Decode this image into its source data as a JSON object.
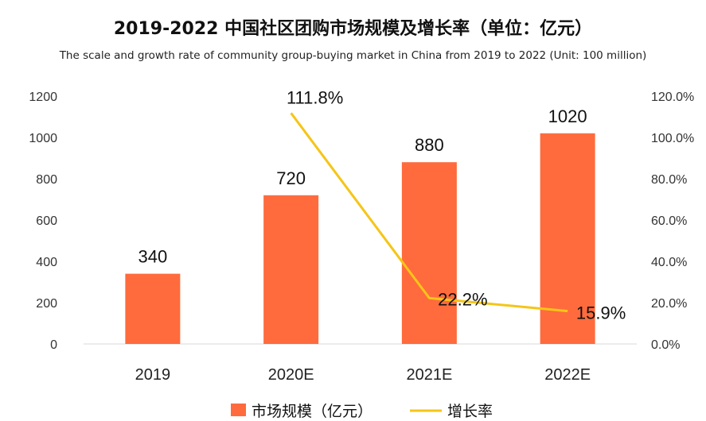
{
  "chart_data": {
    "type": "bar+line",
    "title": "2019-2022 中国社区团购市场规模及增长率（单位：亿元）",
    "subtitle": "The scale and growth rate of community group-buying market in China from 2019 to 2022 (Unit: 100 million)",
    "categories": [
      "2019",
      "2020E",
      "2021E",
      "2022E"
    ],
    "series": [
      {
        "name": "市场规模（亿元）",
        "type": "bar",
        "axis": "left",
        "values": [
          340,
          720,
          880,
          1020
        ],
        "labels": [
          "340",
          "720",
          "880",
          "1020"
        ]
      },
      {
        "name": "增长率",
        "type": "line",
        "axis": "right",
        "values": [
          null,
          111.8,
          22.2,
          15.9
        ],
        "labels": [
          "",
          "111.8%",
          "22.2%",
          "15.9%"
        ]
      }
    ],
    "y_left": {
      "min": 0,
      "max": 1200,
      "ticks": [
        "0",
        "200",
        "400",
        "600",
        "800",
        "1000",
        "1200"
      ]
    },
    "y_right": {
      "min": 0,
      "max": 120,
      "ticks": [
        "0.0%",
        "20.0%",
        "40.0%",
        "60.0%",
        "80.0%",
        "100.0%",
        "120.0%"
      ]
    },
    "legend_position": "bottom",
    "colors": {
      "bar": "#FF6B3D",
      "line": "#F5C518"
    }
  }
}
